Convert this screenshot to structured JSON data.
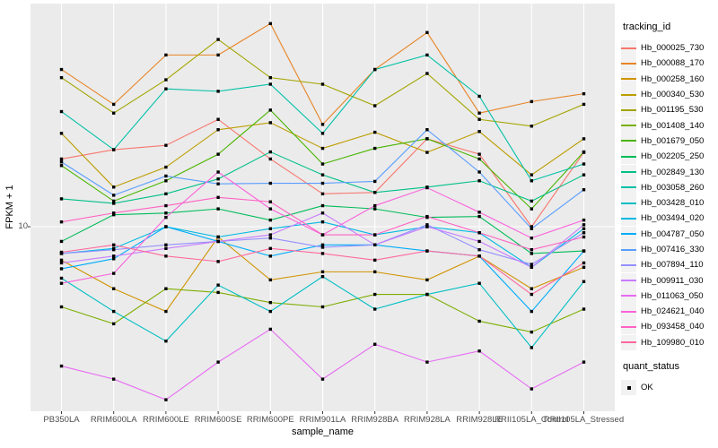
{
  "y_axis": {
    "tick_labels": [
      "10"
    ],
    "scale": "log10"
  },
  "legend": {
    "tracking_title": "tracking_id",
    "quant_title": "quant_status",
    "quant_items": [
      {
        "label": "OK",
        "shape": "black-square"
      }
    ]
  },
  "colors": {
    "panel_bg": "#EBEBEB",
    "grid": "#FFFFFF",
    "point": "#000000",
    "tick_mark": "#333333",
    "tick_text": "#4D4D4D",
    "legend_key_bg": "#F2F2F2"
  },
  "chart_data": {
    "type": "line",
    "title": "",
    "xlabel": "sample_name",
    "ylabel": "FPKM + 1",
    "yscale": "log10",
    "yticks": [
      10
    ],
    "ylim_approx": [
      1.5,
      95
    ],
    "grid": "white-on-gray",
    "legend_position": "right",
    "point_shape": "black-square",
    "categories": [
      "PB350LA",
      "RRIM600LA",
      "RRIM600LE",
      "RRIM600SE",
      "RRIM600PE",
      "RRIM901LA",
      "RRIM928BA",
      "RRIM928LA",
      "RRIM928LE",
      "RRII105LA_Control",
      "RRII105LA_Stressed"
    ],
    "series": [
      {
        "name": "Hb_000025_730",
        "color": "#F8766D",
        "values": [
          20,
          22,
          23,
          30,
          20,
          14,
          14.2,
          24.6,
          21,
          10,
          21.4
        ]
      },
      {
        "name": "Hb_000088_170",
        "color": "#E88526",
        "values": [
          50,
          35,
          58,
          58,
          80,
          28.5,
          50,
          73,
          32,
          36,
          39
        ]
      },
      {
        "name": "Hb_000258_160",
        "color": "#D09400",
        "values": [
          7.1,
          5.3,
          4.2,
          9.0,
          5.8,
          6.3,
          6.3,
          5.8,
          7.4,
          5.3,
          6.6
        ]
      },
      {
        "name": "Hb_000340_530",
        "color": "#BC9D00",
        "values": [
          26,
          15,
          18.4,
          27,
          29,
          22.3,
          26.3,
          21.4,
          26.5,
          17,
          24.6
        ]
      },
      {
        "name": "Hb_001195_530",
        "color": "#A3A500",
        "values": [
          46,
          32,
          45,
          68,
          46,
          43,
          34.5,
          48,
          30,
          28,
          35
        ]
      },
      {
        "name": "Hb_001408_140",
        "color": "#7CAE00",
        "values": [
          4.4,
          3.7,
          5.3,
          5.1,
          4.6,
          4.4,
          5.0,
          5.0,
          3.8,
          3.4,
          4.3
        ]
      },
      {
        "name": "Hb_001679_050",
        "color": "#49B500",
        "values": [
          18.7,
          13,
          16,
          21,
          33,
          19,
          22.3,
          24.6,
          20,
          12,
          21.5
        ]
      },
      {
        "name": "Hb_002205_250",
        "color": "#00BC59",
        "values": [
          8.6,
          11.3,
          11.5,
          12,
          10.7,
          12.4,
          12,
          11,
          11.1,
          7.6,
          7.8
        ]
      },
      {
        "name": "Hb_002849_130",
        "color": "#00C087",
        "values": [
          13.3,
          12.7,
          14,
          16.3,
          21.5,
          17,
          14.2,
          15,
          16,
          13,
          17
        ]
      },
      {
        "name": "Hb_003058_260",
        "color": "#00C1A7",
        "values": [
          32.5,
          22,
          41,
          40,
          43,
          26,
          50,
          58,
          38,
          16,
          19
        ]
      },
      {
        "name": "Hb_003428_010",
        "color": "#00BFC4",
        "values": [
          5.9,
          4.2,
          3.1,
          5.5,
          4.2,
          6.0,
          4.3,
          5.0,
          5.6,
          2.9,
          5.7
        ]
      },
      {
        "name": "Hb_003494_020",
        "color": "#00B9E3",
        "values": [
          7.6,
          8.0,
          10,
          9.0,
          9.8,
          10.5,
          9.2,
          10,
          9.4,
          6.6,
          9.8
        ]
      },
      {
        "name": "Hb_004787_050",
        "color": "#00ADFA",
        "values": [
          6.5,
          7.2,
          10,
          8.6,
          7.4,
          8.3,
          8.3,
          7.8,
          7.4,
          4.2,
          7.8
        ]
      },
      {
        "name": "Hb_007416_330",
        "color": "#5A9DFF",
        "values": [
          19.4,
          13.8,
          16.8,
          15.5,
          15.6,
          15.6,
          15.9,
          27,
          17.5,
          9.8,
          14.6
        ]
      },
      {
        "name": "Hb_007894_110",
        "color": "#9590FF",
        "values": [
          7.6,
          7.9,
          8.3,
          8.6,
          8.9,
          8.1,
          8.3,
          10.2,
          7.9,
          6.8,
          9.4
        ]
      },
      {
        "name": "Hb_009911_030",
        "color": "#C77CFF",
        "values": [
          6.9,
          7.4,
          8.0,
          8.6,
          9.2,
          11.5,
          8.3,
          10,
          8.6,
          6.6,
          10.2
        ]
      },
      {
        "name": "Hb_011063_050",
        "color": "#E76BF3",
        "values": [
          2.4,
          2.1,
          1.7,
          2.5,
          3.5,
          2.1,
          3.0,
          2.5,
          2.8,
          1.9,
          2.5
        ]
      },
      {
        "name": "Hb_024621_040",
        "color": "#FA62DB",
        "values": [
          5.6,
          6.2,
          11,
          17.5,
          12,
          9.2,
          12.4,
          14.9,
          11.6,
          8.9,
          10.7
        ]
      },
      {
        "name": "Hb_093458_040",
        "color": "#FF61C3",
        "values": [
          10.5,
          11.5,
          12.4,
          13.5,
          12.9,
          9.2,
          9.2,
          11.1,
          9.4,
          7.9,
          9.0
        ]
      },
      {
        "name": "Hb_109980_010",
        "color": "#FF689E",
        "values": [
          7.7,
          8.3,
          7.4,
          7.0,
          8.0,
          7.6,
          7.1,
          7.8,
          7.4,
          5.0,
          6.9
        ]
      }
    ]
  }
}
